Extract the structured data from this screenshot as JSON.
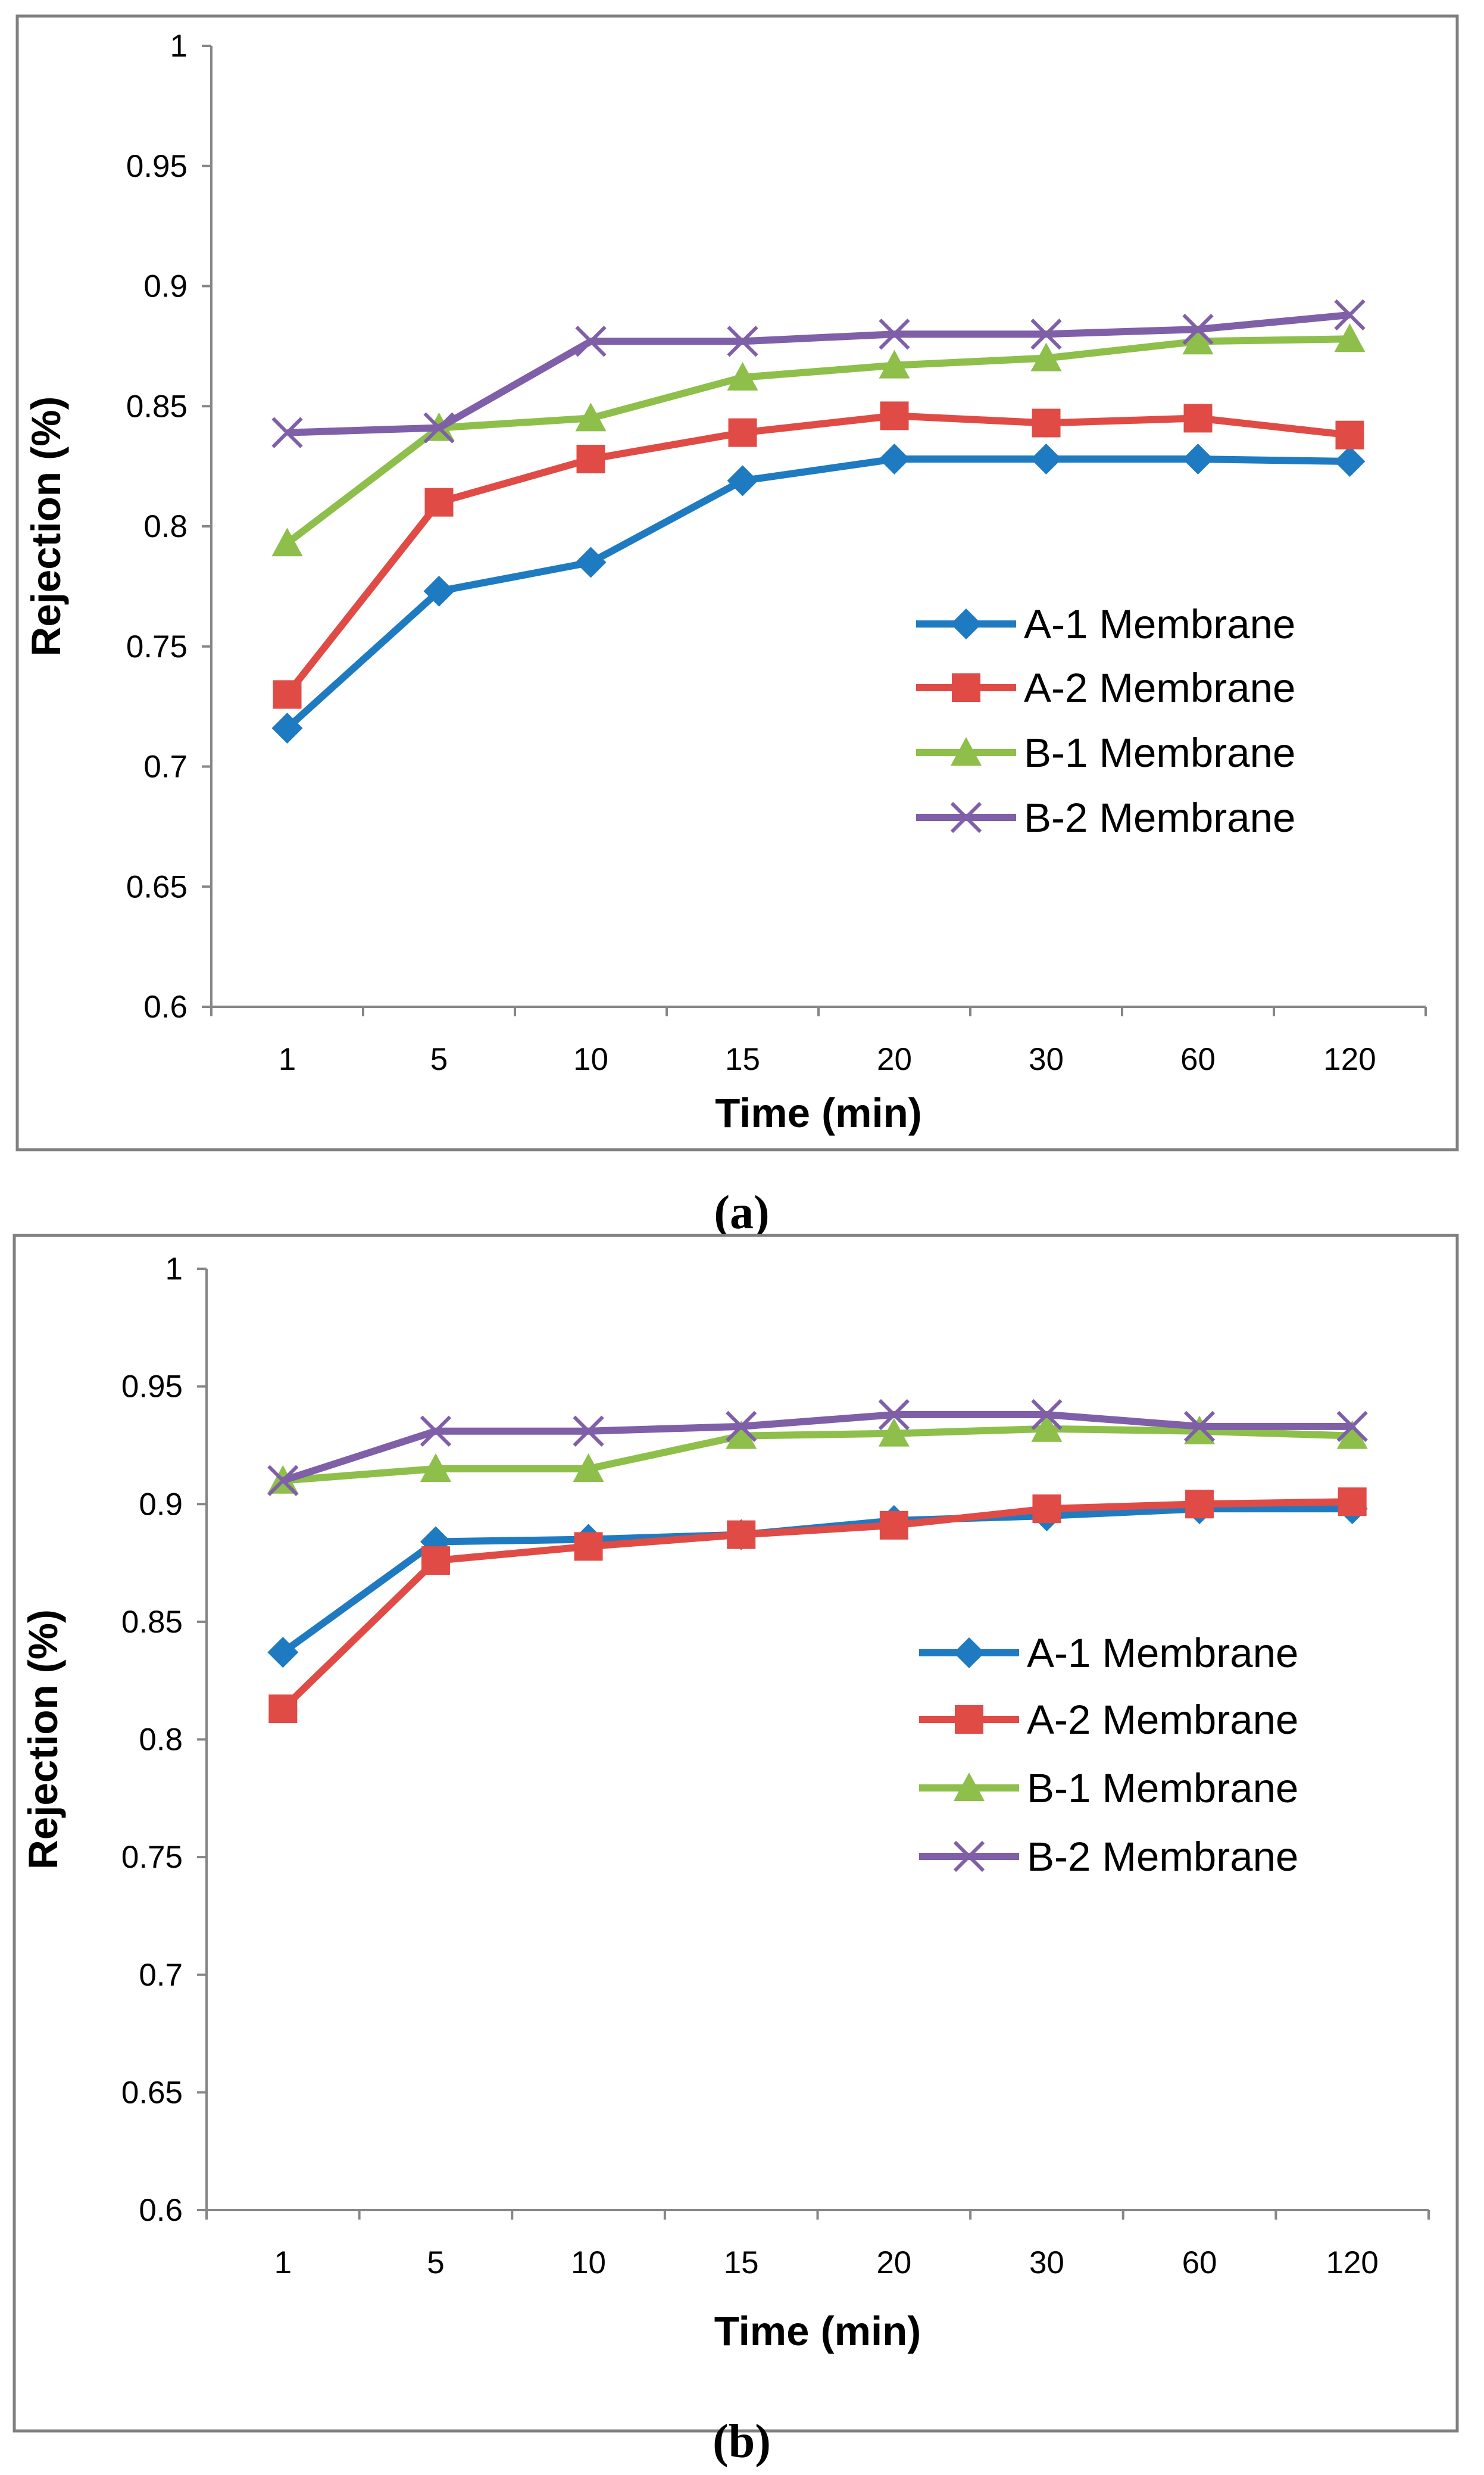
{
  "chart_data": [
    {
      "type": "line",
      "panel_label": "(a)",
      "categories": [
        "1",
        "5",
        "10",
        "15",
        "20",
        "30",
        "60",
        "120"
      ],
      "xlabel": "Time (min)",
      "ylabel": "Rejection (%)",
      "ylim": [
        0.6,
        1
      ],
      "yticks": [
        "0.6",
        "0.65",
        "0.7",
        "0.75",
        "0.8",
        "0.85",
        "0.9",
        "0.95",
        "1"
      ],
      "grid": false,
      "legend_position": "right-middle",
      "series": [
        {
          "name": "A-1 Membrane",
          "marker": "diamond",
          "color": "#1F7BC1",
          "values": [
            0.716,
            0.773,
            0.785,
            0.819,
            0.828,
            0.828,
            0.828,
            0.827
          ]
        },
        {
          "name": "A-2 Membrane",
          "marker": "square",
          "color": "#E04B46",
          "values": [
            0.73,
            0.81,
            0.828,
            0.839,
            0.846,
            0.843,
            0.845,
            0.838
          ]
        },
        {
          "name": "B-1 Membrane",
          "marker": "triangle",
          "color": "#8DBF4A",
          "values": [
            0.793,
            0.841,
            0.845,
            0.862,
            0.867,
            0.87,
            0.877,
            0.878
          ]
        },
        {
          "name": "B-2 Membrane",
          "marker": "x",
          "color": "#7F5FA8",
          "values": [
            0.839,
            0.841,
            0.877,
            0.877,
            0.88,
            0.88,
            0.882,
            0.888
          ]
        }
      ]
    },
    {
      "type": "line",
      "panel_label": "(b)",
      "categories": [
        "1",
        "5",
        "10",
        "15",
        "20",
        "30",
        "60",
        "120"
      ],
      "xlabel": "Time (min)",
      "ylabel": "Rejection (%)",
      "ylim": [
        0.6,
        1
      ],
      "yticks": [
        "0.6",
        "0.65",
        "0.7",
        "0.75",
        "0.8",
        "0.85",
        "0.9",
        "0.95",
        "1"
      ],
      "grid": false,
      "legend_position": "right-middle",
      "series": [
        {
          "name": "A-1 Membrane",
          "marker": "diamond",
          "color": "#1F7BC1",
          "values": [
            0.837,
            0.884,
            0.885,
            0.887,
            0.893,
            0.895,
            0.898,
            0.898
          ]
        },
        {
          "name": "A-2 Membrane",
          "marker": "square",
          "color": "#E04B46",
          "values": [
            0.813,
            0.876,
            0.882,
            0.887,
            0.891,
            0.898,
            0.9,
            0.901
          ]
        },
        {
          "name": "B-1 Membrane",
          "marker": "triangle",
          "color": "#8DBF4A",
          "values": [
            0.91,
            0.915,
            0.915,
            0.929,
            0.93,
            0.932,
            0.931,
            0.929
          ]
        },
        {
          "name": "B-2 Membrane",
          "marker": "x",
          "color": "#7F5FA8",
          "values": [
            0.91,
            0.931,
            0.931,
            0.933,
            0.938,
            0.938,
            0.933,
            0.933
          ]
        }
      ]
    }
  ]
}
